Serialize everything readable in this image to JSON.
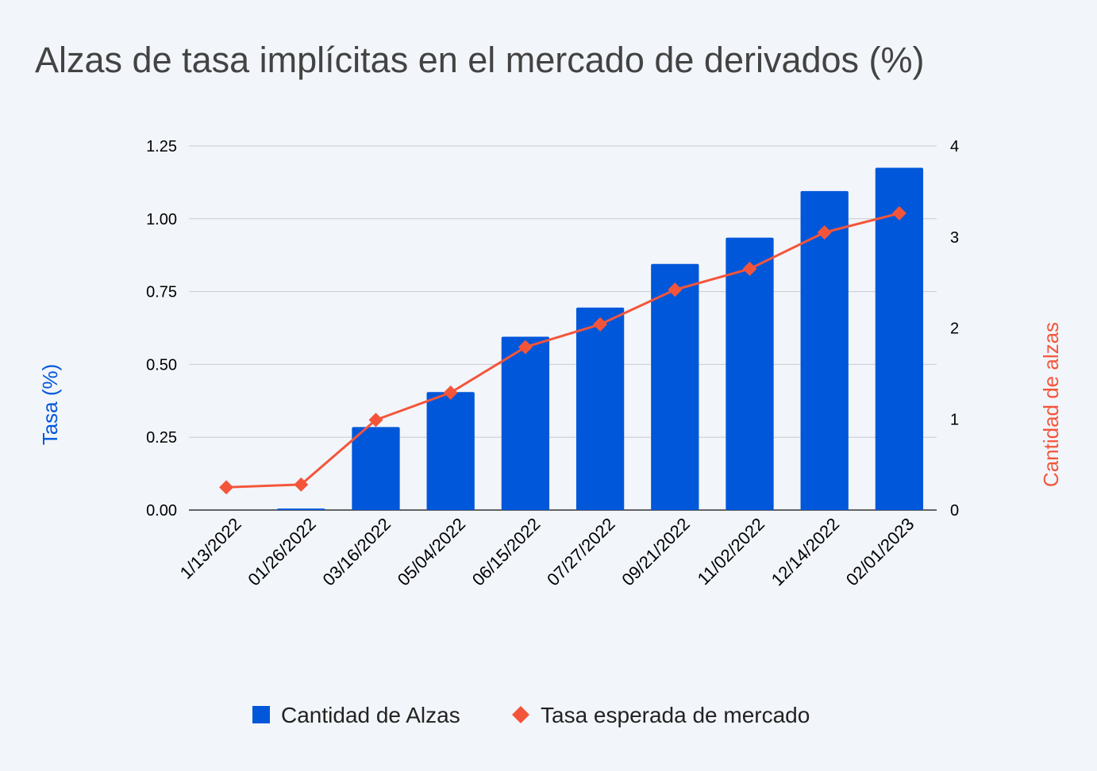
{
  "chart_data": {
    "type": "bar+line",
    "title": "Alzas de tasa implícitas en el mercado de derivados (%)",
    "categories": [
      "1/13/2022",
      "01/26/2022",
      "03/16/2022",
      "05/04/2022",
      "06/15/2022",
      "07/27/2022",
      "09/21/2022",
      "11/02/2022",
      "12/14/2022",
      "02/01/2023"
    ],
    "left_axis": {
      "label": "Tasa (%)",
      "ylim": [
        0,
        1.25
      ],
      "ticks": [
        "0.00",
        "0.25",
        "0.50",
        "0.75",
        "1.00",
        "1.25"
      ],
      "color": "#0057d9"
    },
    "right_axis": {
      "label": "Cantidad de alzas",
      "ylim": [
        0,
        4
      ],
      "ticks": [
        "0",
        "1",
        "2",
        "3",
        "4"
      ],
      "color": "#f4553a"
    },
    "series": [
      {
        "name": "Cantidad de Alzas",
        "type": "bar",
        "axis": "left",
        "color": "#0057d9",
        "values": [
          0.0,
          0.005,
          0.285,
          0.405,
          0.595,
          0.695,
          0.845,
          0.935,
          1.095,
          1.175
        ]
      },
      {
        "name": "Tasa esperada de mercado",
        "type": "line",
        "axis": "right",
        "color": "#f4553a",
        "marker": "diamond",
        "values": [
          0.25,
          0.28,
          0.99,
          1.29,
          1.79,
          2.04,
          2.42,
          2.65,
          3.05,
          3.26
        ]
      }
    ],
    "grid": true,
    "legend": "bottom"
  }
}
